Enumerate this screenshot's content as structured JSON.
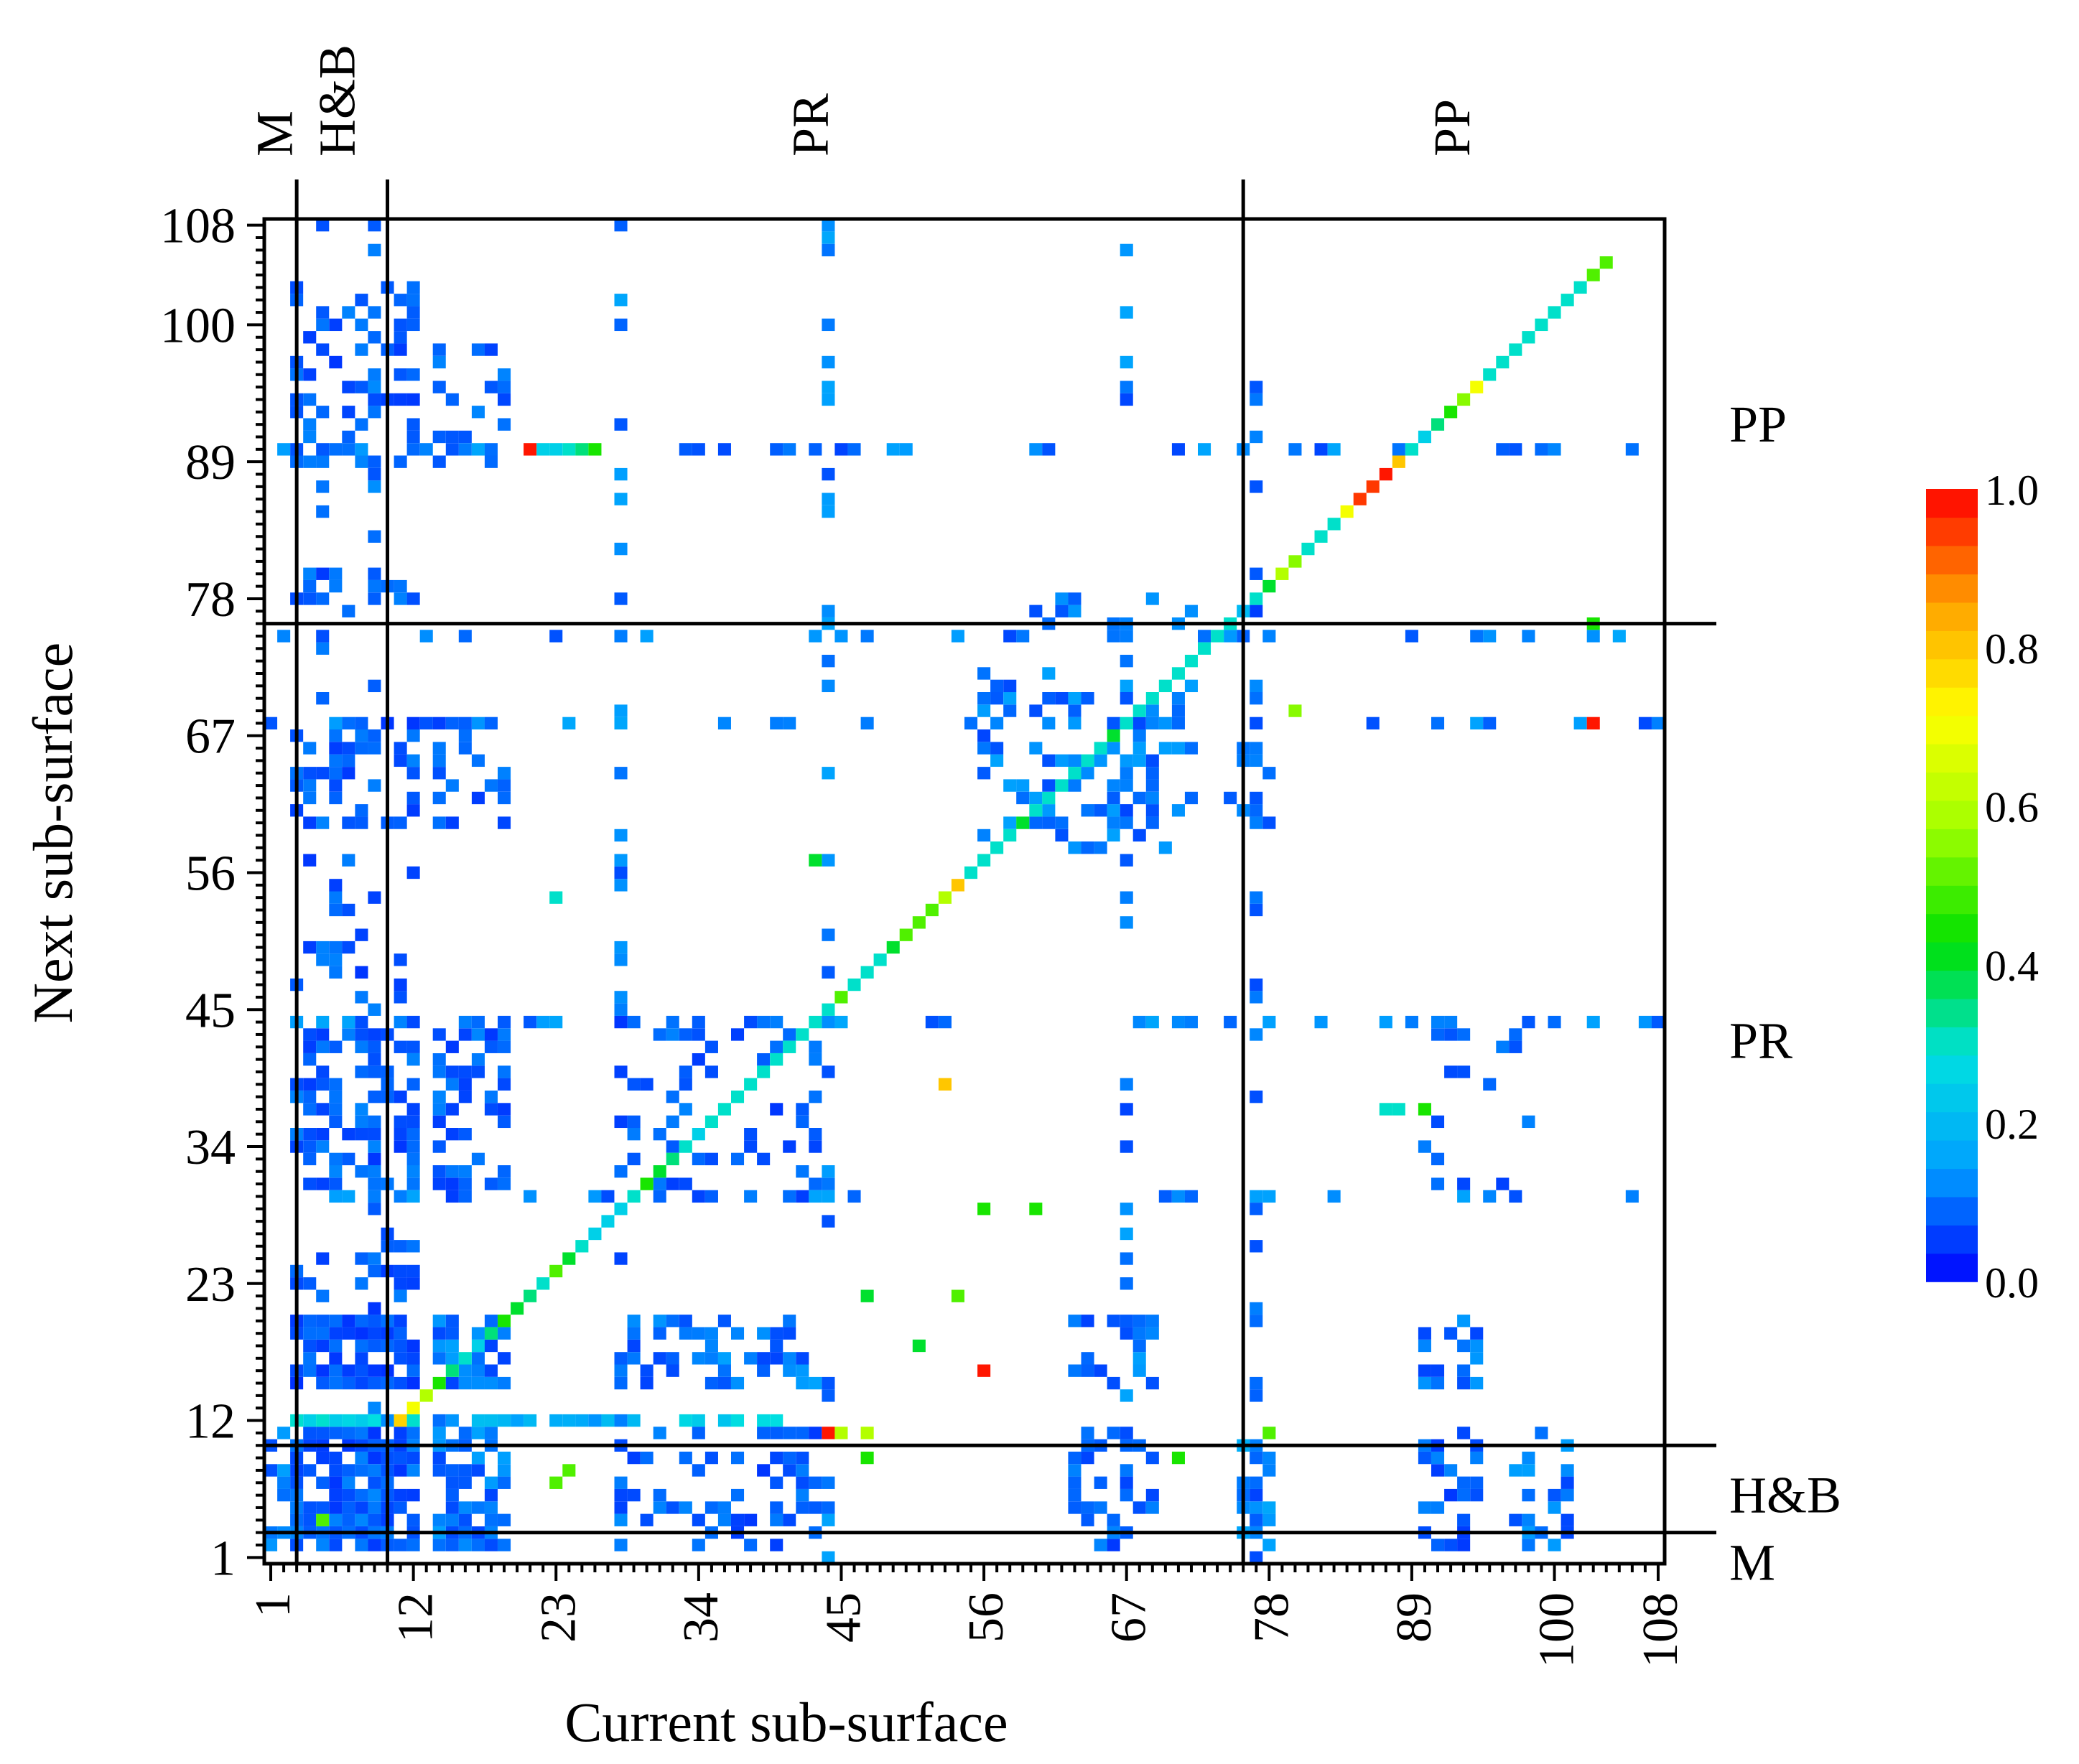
{
  "chart_data": {
    "type": "heatmap",
    "xlabel": "Current sub-surface",
    "ylabel": "Next sub-surface",
    "xlim": [
      1,
      108
    ],
    "ylim": [
      1,
      108
    ],
    "x_ticks": [
      "1",
      "12",
      "23",
      "34",
      "45",
      "56",
      "67",
      "78",
      "89",
      "100",
      "108"
    ],
    "y_ticks": [
      "1",
      "12",
      "23",
      "34",
      "45",
      "56",
      "67",
      "78",
      "89",
      "100",
      "108"
    ],
    "groups": [
      {
        "name": "M",
        "start": 1,
        "end": 2
      },
      {
        "name": "H&B",
        "start": 3,
        "end": 9
      },
      {
        "name": "PR",
        "start": 10,
        "end": 75
      },
      {
        "name": "PP",
        "start": 76,
        "end": 108
      }
    ],
    "colorbar": {
      "min": 0.0,
      "max": 1.0,
      "ticks": [
        "0.0",
        "0.2",
        "0.4",
        "0.6",
        "0.8",
        "1.0"
      ],
      "colors": [
        "#0000ff",
        "#00a0ff",
        "#00e0e0",
        "#00e000",
        "#a0ff00",
        "#ffff00",
        "#ffa000",
        "#ff0000"
      ]
    },
    "diagonal": [
      [
        11,
        12,
        0.78
      ],
      [
        12,
        13,
        0.7
      ],
      [
        13,
        14,
        0.6
      ],
      [
        14,
        15,
        0.45
      ],
      [
        15,
        16,
        0.35
      ],
      [
        16,
        17,
        0.3
      ],
      [
        17,
        18,
        0.25
      ],
      [
        18,
        19,
        0.35
      ],
      [
        19,
        20,
        0.45
      ],
      [
        20,
        21,
        0.4
      ],
      [
        21,
        22,
        0.35
      ],
      [
        22,
        23,
        0.3
      ],
      [
        23,
        24,
        0.5
      ],
      [
        24,
        25,
        0.4
      ],
      [
        25,
        26,
        0.3
      ],
      [
        26,
        27,
        0.25
      ],
      [
        27,
        28,
        0.25
      ],
      [
        28,
        29,
        0.25
      ],
      [
        29,
        30,
        0.3
      ],
      [
        30,
        31,
        0.45
      ],
      [
        31,
        32,
        0.4
      ],
      [
        32,
        33,
        0.35
      ],
      [
        33,
        34,
        0.3
      ],
      [
        34,
        35,
        0.25
      ],
      [
        35,
        36,
        0.3
      ],
      [
        36,
        37,
        0.3
      ],
      [
        37,
        38,
        0.3
      ],
      [
        38,
        39,
        0.3
      ],
      [
        39,
        40,
        0.3
      ],
      [
        40,
        41,
        0.3
      ],
      [
        41,
        42,
        0.3
      ],
      [
        42,
        43,
        0.3
      ],
      [
        43,
        44,
        0.3
      ],
      [
        44,
        45,
        0.3
      ],
      [
        45,
        46,
        0.5
      ],
      [
        46,
        47,
        0.3
      ],
      [
        47,
        48,
        0.3
      ],
      [
        48,
        49,
        0.3
      ],
      [
        49,
        50,
        0.4
      ],
      [
        50,
        51,
        0.5
      ],
      [
        51,
        52,
        0.5
      ],
      [
        52,
        53,
        0.5
      ],
      [
        53,
        54,
        0.6
      ],
      [
        54,
        55,
        0.8
      ],
      [
        55,
        56,
        0.3
      ],
      [
        56,
        57,
        0.3
      ],
      [
        57,
        58,
        0.3
      ],
      [
        58,
        59,
        0.3
      ],
      [
        59,
        60,
        0.4
      ],
      [
        60,
        61,
        0.3
      ],
      [
        61,
        62,
        0.3
      ],
      [
        62,
        63,
        0.3
      ],
      [
        63,
        64,
        0.3
      ],
      [
        64,
        65,
        0.3
      ],
      [
        65,
        66,
        0.3
      ],
      [
        66,
        67,
        0.4
      ],
      [
        67,
        68,
        0.3
      ],
      [
        68,
        69,
        0.3
      ],
      [
        69,
        70,
        0.3
      ],
      [
        70,
        71,
        0.3
      ],
      [
        71,
        72,
        0.3
      ],
      [
        72,
        73,
        0.3
      ],
      [
        73,
        74,
        0.3
      ],
      [
        74,
        75,
        0.3
      ],
      [
        75,
        76,
        0.3
      ],
      [
        76,
        77,
        0.2
      ],
      [
        77,
        78,
        0.3
      ],
      [
        78,
        79,
        0.4
      ],
      [
        79,
        80,
        0.6
      ],
      [
        80,
        81,
        0.55
      ],
      [
        81,
        82,
        0.3
      ],
      [
        82,
        83,
        0.3
      ],
      [
        83,
        84,
        0.3
      ],
      [
        84,
        85,
        0.7
      ],
      [
        85,
        86,
        0.95
      ],
      [
        86,
        87,
        0.95
      ],
      [
        87,
        88,
        0.98
      ],
      [
        88,
        89,
        0.8
      ],
      [
        89,
        90,
        0.3
      ],
      [
        90,
        91,
        0.25
      ],
      [
        91,
        92,
        0.35
      ],
      [
        92,
        93,
        0.45
      ],
      [
        93,
        94,
        0.55
      ],
      [
        94,
        95,
        0.7
      ],
      [
        95,
        96,
        0.3
      ],
      [
        96,
        97,
        0.3
      ],
      [
        97,
        98,
        0.3
      ],
      [
        98,
        99,
        0.3
      ],
      [
        99,
        100,
        0.3
      ],
      [
        100,
        101,
        0.3
      ],
      [
        101,
        102,
        0.3
      ],
      [
        102,
        103,
        0.3
      ],
      [
        103,
        104,
        0.5
      ],
      [
        104,
        105,
        0.5
      ]
    ],
    "highlights": [
      [
        21,
        90,
        0.98
      ],
      [
        22,
        90,
        0.25
      ],
      [
        23,
        90,
        0.25
      ],
      [
        24,
        90,
        0.3
      ],
      [
        25,
        90,
        0.35
      ],
      [
        26,
        90,
        0.45
      ],
      [
        103,
        68,
        0.98
      ],
      [
        80,
        69,
        0.55
      ],
      [
        53,
        39,
        0.8
      ],
      [
        56,
        16,
        0.98
      ],
      [
        44,
        11,
        0.98
      ],
      [
        45,
        11,
        0.6
      ],
      [
        47,
        11,
        0.6
      ],
      [
        54,
        22,
        0.5
      ],
      [
        47,
        22,
        0.4
      ],
      [
        51,
        18,
        0.4
      ],
      [
        23,
        7,
        0.5
      ],
      [
        24,
        8,
        0.5
      ],
      [
        47,
        9,
        0.45
      ],
      [
        71,
        9,
        0.45
      ],
      [
        5,
        4,
        0.5
      ],
      [
        43,
        57,
        0.4
      ],
      [
        23,
        54,
        0.3
      ],
      [
        78,
        11,
        0.5
      ],
      [
        103,
        76,
        0.45
      ],
      [
        56,
        29,
        0.45
      ],
      [
        60,
        29,
        0.45
      ],
      [
        88,
        37,
        0.3
      ],
      [
        87,
        37,
        0.3
      ],
      [
        90,
        37,
        0.45
      ]
    ],
    "blocks": [
      {
        "x": [
          3,
          12
        ],
        "y": [
          2,
          11
        ],
        "density": 0.8,
        "value": 0.08
      },
      {
        "x": [
          1,
          2
        ],
        "y": [
          2,
          11
        ],
        "density": 0.45,
        "value": 0.1
      },
      {
        "x": [
          3,
          12
        ],
        "y": [
          15,
          20
        ],
        "density": 0.8,
        "value": 0.07
      },
      {
        "x": [
          3,
          12
        ],
        "y": [
          12,
          12
        ],
        "density": 0.9,
        "value": 0.2
      },
      {
        "x": [
          14,
          19
        ],
        "y": [
          2,
          11
        ],
        "density": 0.75,
        "value": 0.1
      },
      {
        "x": [
          14,
          19
        ],
        "y": [
          15,
          20
        ],
        "density": 0.65,
        "value": 0.1
      },
      {
        "x": [
          14,
          30
        ],
        "y": [
          12,
          12
        ],
        "density": 0.7,
        "value": 0.15
      },
      {
        "x": [
          31,
          43
        ],
        "y": [
          12,
          12
        ],
        "density": 0.6,
        "value": 0.2
      },
      {
        "x": [
          28,
          43
        ],
        "y": [
          2,
          11
        ],
        "density": 0.35,
        "value": 0.08
      },
      {
        "x": [
          28,
          43
        ],
        "y": [
          15,
          20
        ],
        "density": 0.4,
        "value": 0.1
      },
      {
        "x": [
          63,
          69
        ],
        "y": [
          2,
          11
        ],
        "density": 0.45,
        "value": 0.08
      },
      {
        "x": [
          63,
          69
        ],
        "y": [
          15,
          20
        ],
        "density": 0.45,
        "value": 0.1
      },
      {
        "x": [
          76,
          78
        ],
        "y": [
          2,
          11
        ],
        "density": 0.5,
        "value": 0.12
      },
      {
        "x": [
          90,
          94
        ],
        "y": [
          2,
          11
        ],
        "density": 0.4,
        "value": 0.08
      },
      {
        "x": [
          97,
          101
        ],
        "y": [
          2,
          11
        ],
        "density": 0.3,
        "value": 0.1
      },
      {
        "x": [
          90,
          94
        ],
        "y": [
          15,
          20
        ],
        "density": 0.4,
        "value": 0.1
      },
      {
        "x": [
          3,
          12
        ],
        "y": [
          30,
          44
        ],
        "density": 0.45,
        "value": 0.08
      },
      {
        "x": [
          14,
          19
        ],
        "y": [
          30,
          44
        ],
        "density": 0.4,
        "value": 0.08
      },
      {
        "x": [
          28,
          43
        ],
        "y": [
          30,
          44
        ],
        "density": 0.25,
        "value": 0.08
      },
      {
        "x": [
          3,
          12
        ],
        "y": [
          22,
          27
        ],
        "density": 0.3,
        "value": 0.08
      },
      {
        "x": [
          3,
          12
        ],
        "y": [
          60,
          68
        ],
        "density": 0.5,
        "value": 0.08
      },
      {
        "x": [
          14,
          19
        ],
        "y": [
          60,
          68
        ],
        "density": 0.35,
        "value": 0.08
      },
      {
        "x": [
          56,
          72
        ],
        "y": [
          58,
          72
        ],
        "density": 0.35,
        "value": 0.1
      },
      {
        "x": [
          75,
          78
        ],
        "y": [
          60,
          66
        ],
        "density": 0.35,
        "value": 0.1
      },
      {
        "x": [
          3,
          12
        ],
        "y": [
          77,
          80
        ],
        "density": 0.4,
        "value": 0.08
      },
      {
        "x": [
          3,
          12
        ],
        "y": [
          89,
          103
        ],
        "density": 0.35,
        "value": 0.08
      },
      {
        "x": [
          14,
          19
        ],
        "y": [
          89,
          98
        ],
        "density": 0.3,
        "value": 0.08
      },
      {
        "x": [
          60,
          72
        ],
        "y": [
          76,
          78
        ],
        "density": 0.35,
        "value": 0.1
      },
      {
        "x": [
          3,
          12
        ],
        "y": [
          46,
          57
        ],
        "density": 0.15,
        "value": 0.08
      },
      {
        "x": [
          90,
          98
        ],
        "y": [
          30,
          44
        ],
        "density": 0.15,
        "value": 0.08
      }
    ],
    "hlines": [
      {
        "y": 75,
        "value": 0.1
      },
      {
        "y": 68,
        "value": 0.1
      },
      {
        "y": 30,
        "value": 0.1
      },
      {
        "y": 44,
        "value": 0.1
      },
      {
        "y": 90,
        "value": 0.1
      }
    ],
    "vlines": [
      {
        "x": 28,
        "value": 0.1
      },
      {
        "x": 44,
        "value": 0.1
      },
      {
        "x": 67,
        "value": 0.1
      },
      {
        "x": 77,
        "value": 0.08
      },
      {
        "x": 5,
        "value": 0.08
      },
      {
        "x": 9,
        "value": 0.08
      }
    ]
  }
}
